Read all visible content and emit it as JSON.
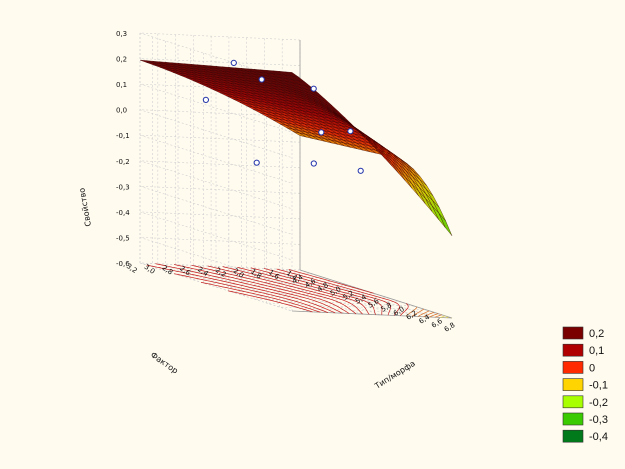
{
  "chart_data": {
    "type": "surface3d",
    "title": "",
    "zlabel": "Свойство",
    "xlabel": "Тип/морфа",
    "ylabel": "Фактор",
    "xticks": [
      "4,4",
      "4,6",
      "4,8",
      "5,0",
      "5,2",
      "5,4",
      "5,6",
      "5,8",
      "6,0",
      "6,2",
      "6,4",
      "6,6",
      "6,8"
    ],
    "yticks": [
      "1,4",
      "1,6",
      "1,8",
      "2,0",
      "2,2",
      "2,4",
      "2,6",
      "2,8",
      "3,0",
      "3,2"
    ],
    "zticks": [
      "0,3",
      "0,2",
      "0,1",
      "0,0",
      "-0,1",
      "-0,2",
      "-0,3",
      "-0,4",
      "-0,5",
      "-0,6"
    ],
    "xlim": [
      4.4,
      6.8
    ],
    "ylim": [
      1.4,
      3.2
    ],
    "zlim": [
      -0.6,
      0.3
    ],
    "grid": true,
    "legend_position": "right",
    "legend": [
      {
        "label": "0,2",
        "color": "#7A0000"
      },
      {
        "label": "0,1",
        "color": "#B00000"
      },
      {
        "label": "0",
        "color": "#FF2A00"
      },
      {
        "label": "-0,1",
        "color": "#FFD400"
      },
      {
        "label": "-0,2",
        "color": "#A8FF00"
      },
      {
        "label": "-0,3",
        "color": "#3ACC00"
      },
      {
        "label": "-0,4",
        "color": "#007A1A"
      }
    ],
    "points": [
      {
        "x": 5.6,
        "y": 3.0,
        "z": 0.28
      },
      {
        "x": 5.9,
        "y": 2.9,
        "z": 0.24
      },
      {
        "x": 6.3,
        "y": 2.6,
        "z": 0.24
      },
      {
        "x": 5.3,
        "y": 3.1,
        "z": 0.11
      },
      {
        "x": 6.0,
        "y": 2.3,
        "z": 0.05
      },
      {
        "x": 6.6,
        "y": 2.4,
        "z": 0.1
      },
      {
        "x": 5.4,
        "y": 2.6,
        "z": -0.12
      },
      {
        "x": 5.6,
        "y": 2.1,
        "z": -0.1
      },
      {
        "x": 6.2,
        "y": 2.0,
        "z": -0.08
      }
    ]
  }
}
